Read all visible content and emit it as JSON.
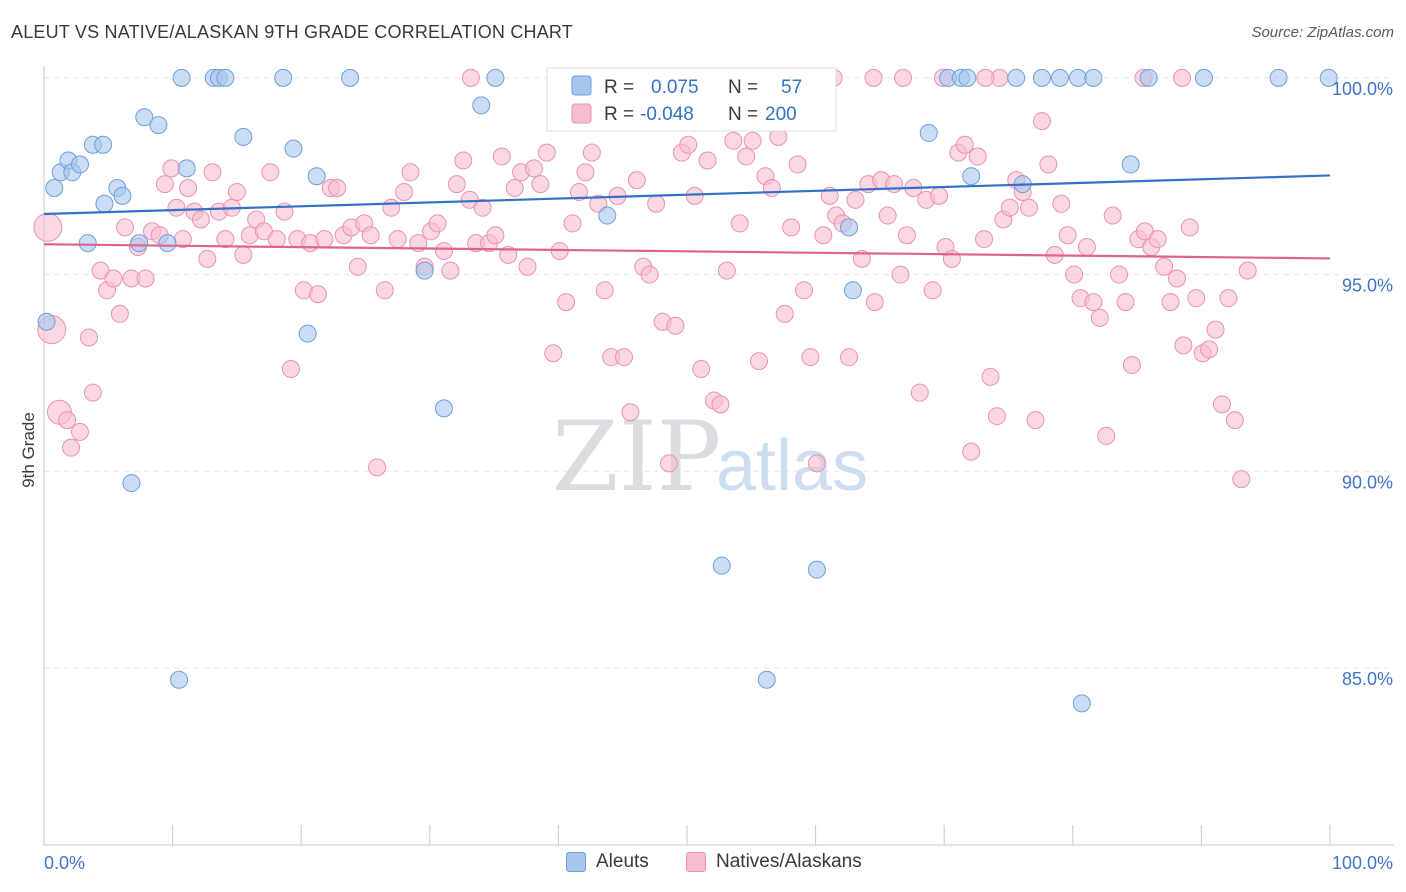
{
  "title": "ALEUT VS NATIVE/ALASKAN 9TH GRADE CORRELATION CHART",
  "source": "Source: ZipAtlas.com",
  "watermark": {
    "zip": "ZIP",
    "atlas": "atlas"
  },
  "legend_top": {
    "rows": [
      {
        "r_label": "R =",
        "r_value": "0.075",
        "n_label": "N =",
        "n_value": "57"
      },
      {
        "r_label": "R =",
        "r_value": "-0.048",
        "n_label": "N =",
        "n_value": "200"
      }
    ]
  },
  "legend_bottom": {
    "items": [
      "Aleuts",
      "Natives/Alaskans"
    ]
  },
  "colors": {
    "aleut_fill": "#a9c6ef",
    "aleut_stroke": "#6f9fd8",
    "aleut_line": "#3471c6",
    "native_fill": "#f6bdd0",
    "native_stroke": "#e993b0",
    "native_line": "#e0628e",
    "tick_label": "#3f74c8",
    "value_text": "#3471c6"
  },
  "chart_data": {
    "type": "scatter",
    "title": "ALEUT VS NATIVE/ALASKAN 9TH GRADE CORRELATION CHART",
    "xlabel": "",
    "ylabel": "9th Grade",
    "x_tick_labels": [
      "0.0%",
      "100.0%"
    ],
    "y_tick_labels": [
      "100.0%",
      "95.0%",
      "90.0%",
      "85.0%"
    ],
    "xlim": [
      0,
      100
    ],
    "ylim": [
      80.5,
      100.2
    ],
    "y_ticks": [
      100,
      95,
      90,
      85
    ],
    "grid": true,
    "series": [
      {
        "name": "Aleuts",
        "r": 0.075,
        "n": 57,
        "trend": [
          [
            0,
            96.54
          ],
          [
            100,
            97.52
          ]
        ],
        "points": [
          [
            0.2,
            93.8
          ],
          [
            0.8,
            97.2
          ],
          [
            1.3,
            97.6
          ],
          [
            1.9,
            97.9
          ],
          [
            2.2,
            97.6
          ],
          [
            2.8,
            97.8
          ],
          [
            3.4,
            95.8
          ],
          [
            3.8,
            98.3
          ],
          [
            4.6,
            98.3
          ],
          [
            4.7,
            96.8
          ],
          [
            5.7,
            97.2
          ],
          [
            6.1,
            97.0
          ],
          [
            6.8,
            89.7
          ],
          [
            7.4,
            95.8
          ],
          [
            7.8,
            99.0
          ],
          [
            8.9,
            98.8
          ],
          [
            9.6,
            95.8
          ],
          [
            10.5,
            84.7
          ],
          [
            10.7,
            100.0
          ],
          [
            11.1,
            97.7
          ],
          [
            13.2,
            100.0
          ],
          [
            13.6,
            100.0
          ],
          [
            14.1,
            100.0
          ],
          [
            15.5,
            98.5
          ],
          [
            18.6,
            100.0
          ],
          [
            19.4,
            98.2
          ],
          [
            20.5,
            93.5
          ],
          [
            21.2,
            97.5
          ],
          [
            23.8,
            100.0
          ],
          [
            29.6,
            95.1
          ],
          [
            31.1,
            91.6
          ],
          [
            34.0,
            99.3
          ],
          [
            35.1,
            100.0
          ],
          [
            43.8,
            96.5
          ],
          [
            52.7,
            87.6
          ],
          [
            56.2,
            84.7
          ],
          [
            58.8,
            100.0
          ],
          [
            60.1,
            87.5
          ],
          [
            62.6,
            96.2
          ],
          [
            62.9,
            94.6
          ],
          [
            68.8,
            98.6
          ],
          [
            70.3,
            100.0
          ],
          [
            71.3,
            100.0
          ],
          [
            71.8,
            100.0
          ],
          [
            72.1,
            97.5
          ],
          [
            75.6,
            100.0
          ],
          [
            76.1,
            97.3
          ],
          [
            77.6,
            100.0
          ],
          [
            79.0,
            100.0
          ],
          [
            80.4,
            100.0
          ],
          [
            80.7,
            84.1
          ],
          [
            81.6,
            100.0
          ],
          [
            84.5,
            97.8
          ],
          [
            85.9,
            100.0
          ],
          [
            90.2,
            100.0
          ],
          [
            96.0,
            100.0
          ],
          [
            99.9,
            100.0
          ]
        ]
      },
      {
        "name": "Natives/Alaskans",
        "r": -0.048,
        "n": 200,
        "trend": [
          [
            0,
            95.77
          ],
          [
            100,
            95.41
          ]
        ],
        "points": [
          [
            0.3,
            96.2
          ],
          [
            0.6,
            93.6
          ],
          [
            1.2,
            91.5
          ],
          [
            1.8,
            91.3
          ],
          [
            2.1,
            90.6
          ],
          [
            2.8,
            91.0
          ],
          [
            3.5,
            93.4
          ],
          [
            3.8,
            92.0
          ],
          [
            4.4,
            95.1
          ],
          [
            4.9,
            94.6
          ],
          [
            5.4,
            94.9
          ],
          [
            5.9,
            94.0
          ],
          [
            6.3,
            96.2
          ],
          [
            6.8,
            94.9
          ],
          [
            7.3,
            95.7
          ],
          [
            7.9,
            94.9
          ],
          [
            8.4,
            96.1
          ],
          [
            9.0,
            96.0
          ],
          [
            9.4,
            97.3
          ],
          [
            9.9,
            97.7
          ],
          [
            10.3,
            96.7
          ],
          [
            10.8,
            95.9
          ],
          [
            11.2,
            97.2
          ],
          [
            11.7,
            96.6
          ],
          [
            12.2,
            96.4
          ],
          [
            12.7,
            95.4
          ],
          [
            13.1,
            97.6
          ],
          [
            13.6,
            96.6
          ],
          [
            14.1,
            95.9
          ],
          [
            14.6,
            96.7
          ],
          [
            15.0,
            97.1
          ],
          [
            15.5,
            95.5
          ],
          [
            16.0,
            96.0
          ],
          [
            16.5,
            96.4
          ],
          [
            17.1,
            96.1
          ],
          [
            17.6,
            97.6
          ],
          [
            18.1,
            95.9
          ],
          [
            18.7,
            96.6
          ],
          [
            19.2,
            92.6
          ],
          [
            19.7,
            95.9
          ],
          [
            20.2,
            94.6
          ],
          [
            20.7,
            95.8
          ],
          [
            21.3,
            94.5
          ],
          [
            21.8,
            95.9
          ],
          [
            22.3,
            97.2
          ],
          [
            22.8,
            97.2
          ],
          [
            23.3,
            96.0
          ],
          [
            23.9,
            96.2
          ],
          [
            24.4,
            95.2
          ],
          [
            24.9,
            96.3
          ],
          [
            25.4,
            96.0
          ],
          [
            25.9,
            90.1
          ],
          [
            26.5,
            94.6
          ],
          [
            27.0,
            96.7
          ],
          [
            27.5,
            95.9
          ],
          [
            28.0,
            97.1
          ],
          [
            28.5,
            97.6
          ],
          [
            29.1,
            95.8
          ],
          [
            29.6,
            95.2
          ],
          [
            30.1,
            96.1
          ],
          [
            30.6,
            96.3
          ],
          [
            31.1,
            95.6
          ],
          [
            31.6,
            95.1
          ],
          [
            32.1,
            97.3
          ],
          [
            32.6,
            97.9
          ],
          [
            33.1,
            96.9
          ],
          [
            33.6,
            95.8
          ],
          [
            34.1,
            96.7
          ],
          [
            34.6,
            95.8
          ],
          [
            35.1,
            96.0
          ],
          [
            35.6,
            98.0
          ],
          [
            36.1,
            95.5
          ],
          [
            36.6,
            97.2
          ],
          [
            37.1,
            97.6
          ],
          [
            37.6,
            95.2
          ],
          [
            38.1,
            97.7
          ],
          [
            38.6,
            97.3
          ],
          [
            39.1,
            98.1
          ],
          [
            39.6,
            93.0
          ],
          [
            40.1,
            95.6
          ],
          [
            40.6,
            94.3
          ],
          [
            41.1,
            96.3
          ],
          [
            41.6,
            97.1
          ],
          [
            42.1,
            97.6
          ],
          [
            42.6,
            98.1
          ],
          [
            43.1,
            96.8
          ],
          [
            43.6,
            94.6
          ],
          [
            44.1,
            92.9
          ],
          [
            44.6,
            97.0
          ],
          [
            45.1,
            92.9
          ],
          [
            45.6,
            91.5
          ],
          [
            46.1,
            97.4
          ],
          [
            46.6,
            95.2
          ],
          [
            47.1,
            95.0
          ],
          [
            47.6,
            96.8
          ],
          [
            48.1,
            93.8
          ],
          [
            48.6,
            90.2
          ],
          [
            49.1,
            93.7
          ],
          [
            49.6,
            98.1
          ],
          [
            50.1,
            98.3
          ],
          [
            50.6,
            97.0
          ],
          [
            51.1,
            92.6
          ],
          [
            51.6,
            97.9
          ],
          [
            52.1,
            91.8
          ],
          [
            52.6,
            91.7
          ],
          [
            53.1,
            95.1
          ],
          [
            53.6,
            98.4
          ],
          [
            54.1,
            96.3
          ],
          [
            54.6,
            98.0
          ],
          [
            55.1,
            98.4
          ],
          [
            55.6,
            92.8
          ],
          [
            56.1,
            97.5
          ],
          [
            56.6,
            97.2
          ],
          [
            57.1,
            98.5
          ],
          [
            57.6,
            94.0
          ],
          [
            58.1,
            96.2
          ],
          [
            58.6,
            97.8
          ],
          [
            59.1,
            94.6
          ],
          [
            59.6,
            92.9
          ],
          [
            60.1,
            90.2
          ],
          [
            60.6,
            96.0
          ],
          [
            61.1,
            97.0
          ],
          [
            61.6,
            96.5
          ],
          [
            62.1,
            96.3
          ],
          [
            62.6,
            92.9
          ],
          [
            63.1,
            96.9
          ],
          [
            63.6,
            95.4
          ],
          [
            64.1,
            97.3
          ],
          [
            64.6,
            94.3
          ],
          [
            65.1,
            97.4
          ],
          [
            65.6,
            96.5
          ],
          [
            66.1,
            97.3
          ],
          [
            66.6,
            95.0
          ],
          [
            67.1,
            96.0
          ],
          [
            67.6,
            97.2
          ],
          [
            68.1,
            92.0
          ],
          [
            68.6,
            96.9
          ],
          [
            69.1,
            94.6
          ],
          [
            69.6,
            97.0
          ],
          [
            70.1,
            95.7
          ],
          [
            70.6,
            95.4
          ],
          [
            71.1,
            98.1
          ],
          [
            71.6,
            98.3
          ],
          [
            72.1,
            90.5
          ],
          [
            72.6,
            98.0
          ],
          [
            73.1,
            95.9
          ],
          [
            73.6,
            92.4
          ],
          [
            74.1,
            91.4
          ],
          [
            74.6,
            96.4
          ],
          [
            75.1,
            96.7
          ],
          [
            75.6,
            97.4
          ],
          [
            76.1,
            97.1
          ],
          [
            76.6,
            96.7
          ],
          [
            77.1,
            91.3
          ],
          [
            77.6,
            98.9
          ],
          [
            78.1,
            97.8
          ],
          [
            78.6,
            95.5
          ],
          [
            79.1,
            96.8
          ],
          [
            79.6,
            96.0
          ],
          [
            80.1,
            95.0
          ],
          [
            80.6,
            94.4
          ],
          [
            81.1,
            95.7
          ],
          [
            81.6,
            94.3
          ],
          [
            82.1,
            93.9
          ],
          [
            82.6,
            90.9
          ],
          [
            83.1,
            96.5
          ],
          [
            83.6,
            95.0
          ],
          [
            84.1,
            94.3
          ],
          [
            84.6,
            92.7
          ],
          [
            85.1,
            95.9
          ],
          [
            85.6,
            96.1
          ],
          [
            86.1,
            95.7
          ],
          [
            86.6,
            95.9
          ],
          [
            87.1,
            95.2
          ],
          [
            87.6,
            94.3
          ],
          [
            88.1,
            94.9
          ],
          [
            88.6,
            93.2
          ],
          [
            89.1,
            96.2
          ],
          [
            89.6,
            94.4
          ],
          [
            90.1,
            93.0
          ],
          [
            90.6,
            93.1
          ],
          [
            91.1,
            93.6
          ],
          [
            91.6,
            91.7
          ],
          [
            92.1,
            94.4
          ],
          [
            92.6,
            91.3
          ],
          [
            93.1,
            89.8
          ],
          [
            93.6,
            95.1
          ],
          [
            74.3,
            100.0
          ],
          [
            61.4,
            100.0
          ],
          [
            66.8,
            100.0
          ],
          [
            45.5,
            100.0
          ],
          [
            33.2,
            100.0
          ],
          [
            85.5,
            100.0
          ],
          [
            88.5,
            100.0
          ],
          [
            48.9,
            100.0
          ],
          [
            55.2,
            100.0
          ],
          [
            69.9,
            100.0
          ],
          [
            73.2,
            100.0
          ],
          [
            59.2,
            100.0
          ],
          [
            64.5,
            100.0
          ]
        ]
      }
    ]
  }
}
